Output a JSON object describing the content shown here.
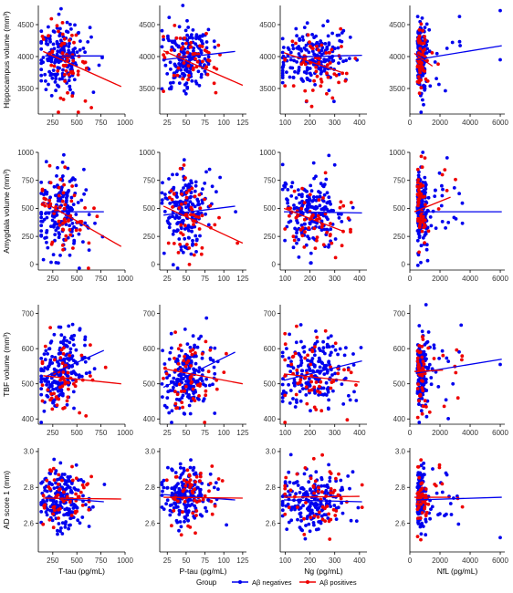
{
  "legend": {
    "title": "Group",
    "entries": [
      {
        "label": "Aβ negatives",
        "color": "#0000ee"
      },
      {
        "label": "Aβ positives",
        "color": "#ee0000"
      }
    ]
  },
  "colors": {
    "negative": "#0000ee",
    "positive": "#ee0000",
    "axis": "#000000"
  },
  "chart_data": {
    "type": "scatter",
    "layout": "4x4 grid of scatter plots with linear fit lines per group",
    "columns": [
      {
        "xlabel": "T-tau (pg/mL)",
        "xlim": [
          100,
          1000
        ],
        "xticks": [
          250,
          500,
          750,
          1000
        ]
      },
      {
        "xlabel": "P-tau (pg/mL)",
        "xlim": [
          15,
          130
        ],
        "xticks": [
          25,
          50,
          75,
          100,
          125
        ]
      },
      {
        "xlabel": "Ng (pg/mL)",
        "xlim": [
          80,
          430
        ],
        "xticks": [
          100,
          200,
          300,
          400
        ]
      },
      {
        "xlabel": "NfL (pg/mL)",
        "xlim": [
          0,
          6300
        ],
        "xticks": [
          0,
          2000,
          4000,
          6000
        ]
      }
    ],
    "rows": [
      {
        "ylabel": "Hippocampus volume (mm³)",
        "ylim": [
          3100,
          4800
        ],
        "yticks": [
          3500,
          4000,
          4500
        ]
      },
      {
        "ylabel": "Amygdala volume (mm³)",
        "ylim": [
          -50,
          1000
        ],
        "yticks": [
          0,
          250,
          500,
          750,
          1000
        ]
      },
      {
        "ylabel": "TBF volume (mm³)",
        "ylim": [
          385,
          725
        ],
        "yticks": [
          400,
          500,
          600,
          700
        ]
      },
      {
        "ylabel": "AD score 1 (mm)",
        "ylim": [
          2.44,
          3.02
        ],
        "yticks": [
          2.6,
          2.8,
          3.0
        ]
      }
    ],
    "fit_lines": {
      "hippocampus": {
        "t_tau": {
          "negative": [
            [
              170,
              4010
            ],
            [
              780,
              4010
            ]
          ],
          "positive": [
            [
              150,
              4080
            ],
            [
              960,
              3530
            ]
          ]
        },
        "p_tau": {
          "negative": [
            [
              20,
              3950
            ],
            [
              115,
              4080
            ]
          ],
          "positive": [
            [
              20,
              4090
            ],
            [
              125,
              3550
            ]
          ]
        },
        "ng": {
          "negative": [
            [
              95,
              3990
            ],
            [
              410,
              4020
            ]
          ],
          "positive": [
            [
              95,
              4060
            ],
            [
              330,
              3750
            ]
          ]
        },
        "nfl": {
          "negative": [
            [
              400,
              3950
            ],
            [
              6100,
              4170
            ]
          ],
          "positive": [
            [
              300,
              4050
            ],
            [
              1500,
              3850
            ]
          ]
        }
      },
      "amygdala": {
        "t_tau": {
          "negative": [
            [
              170,
              470
            ],
            [
              780,
              470
            ]
          ],
          "positive": [
            [
              150,
              560
            ],
            [
              960,
              160
            ]
          ]
        },
        "p_tau": {
          "negative": [
            [
              20,
              440
            ],
            [
              115,
              520
            ]
          ],
          "positive": [
            [
              20,
              520
            ],
            [
              125,
              190
            ]
          ]
        },
        "ng": {
          "negative": [
            [
              95,
              470
            ],
            [
              410,
              460
            ]
          ],
          "positive": [
            [
              95,
              500
            ],
            [
              330,
              300
            ]
          ]
        },
        "nfl": {
          "negative": [
            [
              400,
              470
            ],
            [
              6100,
              470
            ]
          ],
          "positive": [
            [
              300,
              470
            ],
            [
              2700,
              600
            ]
          ]
        }
      },
      "tbf": {
        "t_tau": {
          "negative": [
            [
              170,
              520
            ],
            [
              780,
              595
            ]
          ],
          "positive": [
            [
              150,
              523
            ],
            [
              960,
              500
            ]
          ]
        },
        "p_tau": {
          "negative": [
            [
              20,
              490
            ],
            [
              115,
              590
            ]
          ],
          "positive": [
            [
              20,
              543
            ],
            [
              125,
              500
            ]
          ]
        },
        "ng": {
          "negative": [
            [
              95,
              510
            ],
            [
              410,
              565
            ]
          ],
          "positive": [
            [
              95,
              528
            ],
            [
              400,
              505
            ]
          ]
        },
        "nfl": {
          "negative": [
            [
              400,
              530
            ],
            [
              6100,
              570
            ]
          ],
          "positive": [
            [
              300,
              535
            ],
            [
              2200,
              539
            ]
          ]
        }
      },
      "ad_score": {
        "t_tau": {
          "negative": [
            [
              170,
              2.745
            ],
            [
              780,
              2.72
            ]
          ],
          "positive": [
            [
              150,
              2.74
            ],
            [
              960,
              2.735
            ]
          ]
        },
        "p_tau": {
          "negative": [
            [
              20,
              2.76
            ],
            [
              115,
              2.73
            ]
          ],
          "positive": [
            [
              20,
              2.745
            ],
            [
              125,
              2.74
            ]
          ]
        },
        "ng": {
          "negative": [
            [
              95,
              2.73
            ],
            [
              410,
              2.72
            ]
          ],
          "positive": [
            [
              95,
              2.745
            ],
            [
              400,
              2.75
            ]
          ]
        },
        "nfl": {
          "negative": [
            [
              400,
              2.73
            ],
            [
              6100,
              2.745
            ]
          ],
          "positive": [
            [
              300,
              2.745
            ],
            [
              2700,
              2.745
            ]
          ]
        }
      }
    },
    "outliers": {
      "positive_examples": [
        {
          "panel": "hippocampus/t_tau",
          "x": 650,
          "y": 3200
        },
        {
          "panel": "amygdala/t_tau",
          "x": 620,
          "y": -40
        },
        {
          "panel": "amygdala/nfl",
          "x": 1000,
          "y": 950
        },
        {
          "panel": "ad_score/t_tau",
          "x": 650,
          "y": 2.86
        }
      ],
      "negative_examples": [
        {
          "panel": "hippocampus/nfl",
          "x": 6000,
          "y": 3950
        },
        {
          "panel": "hippocampus/nfl",
          "x": 6000,
          "y": 4720
        },
        {
          "panel": "tbf/nfl",
          "x": 6000,
          "y": 555
        },
        {
          "panel": "ad_score/nfl",
          "x": 6000,
          "y": 2.52
        }
      ]
    },
    "approx_points_per_panel": {
      "negative": 190,
      "positive": 55
    }
  }
}
